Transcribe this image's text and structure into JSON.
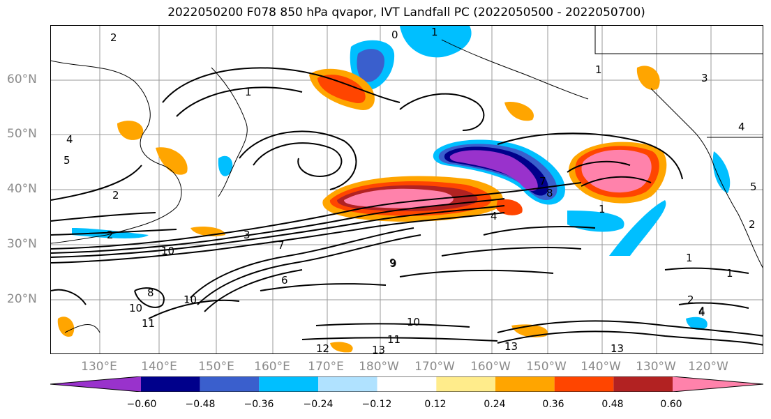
{
  "title": "2022050200 F078 850 hPa qvapor, IVT Landfall PC (2022050500 - 2022050700)",
  "axes": {
    "lat_labels": [
      "60°N",
      "50°N",
      "40°N",
      "30°N",
      "20°N"
    ],
    "lon_labels": [
      "130°E",
      "140°E",
      "150°E",
      "160°E",
      "170°E",
      "180°W",
      "170°W",
      "160°W",
      "150°W",
      "140°W",
      "130°W",
      "120°W"
    ]
  },
  "colorbar": {
    "ticks": [
      "−0.60",
      "−0.48",
      "−0.36",
      "−0.24",
      "−0.12",
      "0.12",
      "0.24",
      "0.36",
      "0.48",
      "0.60"
    ],
    "colors": [
      "#9932CC",
      "#00008B",
      "#3A5FCD",
      "#00BFFF",
      "#B0E2FF",
      "#FFFFFF",
      "#FFEC8B",
      "#FFA500",
      "#FF4500",
      "#B22222",
      "#FF82AB"
    ]
  },
  "contour_labels": [
    "2",
    "0",
    "1",
    "1",
    "7",
    "8",
    "4",
    "1",
    "2",
    "4",
    "5",
    "3",
    "2",
    "10",
    "9",
    "7",
    "6",
    "1",
    "4",
    "8",
    "10",
    "11",
    "12",
    "13",
    "13",
    "13",
    "2",
    "4",
    "1",
    "1",
    "2",
    "5",
    "3",
    "4",
    "10",
    "11",
    "9",
    "10"
  ],
  "map": {
    "region": "North Pacific",
    "shading": "850 hPa qvapor IVT landfall PC",
    "contours": "black"
  }
}
